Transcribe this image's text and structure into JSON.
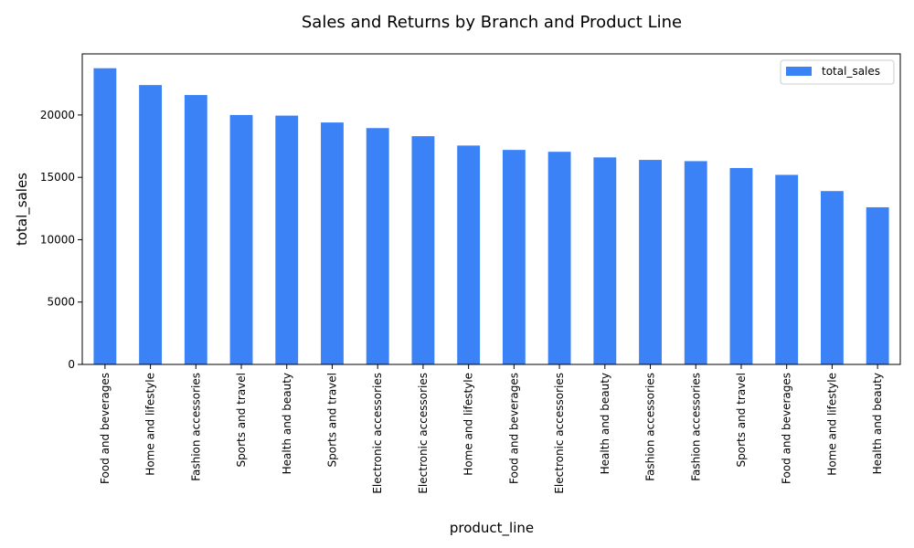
{
  "chart_data": {
    "type": "bar",
    "title": "Sales and Returns by Branch and Product Line",
    "xlabel": "product_line",
    "ylabel": "total_sales",
    "ylim": [
      0,
      24900
    ],
    "yticks": [
      0,
      5000,
      10000,
      15000,
      20000
    ],
    "grid": false,
    "legend_position": "top-right",
    "bar_color": "#3b82f6",
    "categories": [
      "Food and beverages",
      "Home and lifestyle",
      "Fashion accessories",
      "Sports and travel",
      "Health and beauty",
      "Sports and travel",
      "Electronic accessories",
      "Electronic accessories",
      "Home and lifestyle",
      "Food and beverages",
      "Electronic accessories",
      "Health and beauty",
      "Fashion accessories",
      "Fashion accessories",
      "Sports and travel",
      "Food and beverages",
      "Home and lifestyle",
      "Health and beauty"
    ],
    "series": [
      {
        "name": "total_sales",
        "values": [
          23750,
          22400,
          21600,
          20000,
          19950,
          19400,
          18950,
          18300,
          17550,
          17200,
          17050,
          16600,
          16400,
          16300,
          15750,
          15200,
          13900,
          12600
        ]
      }
    ]
  }
}
